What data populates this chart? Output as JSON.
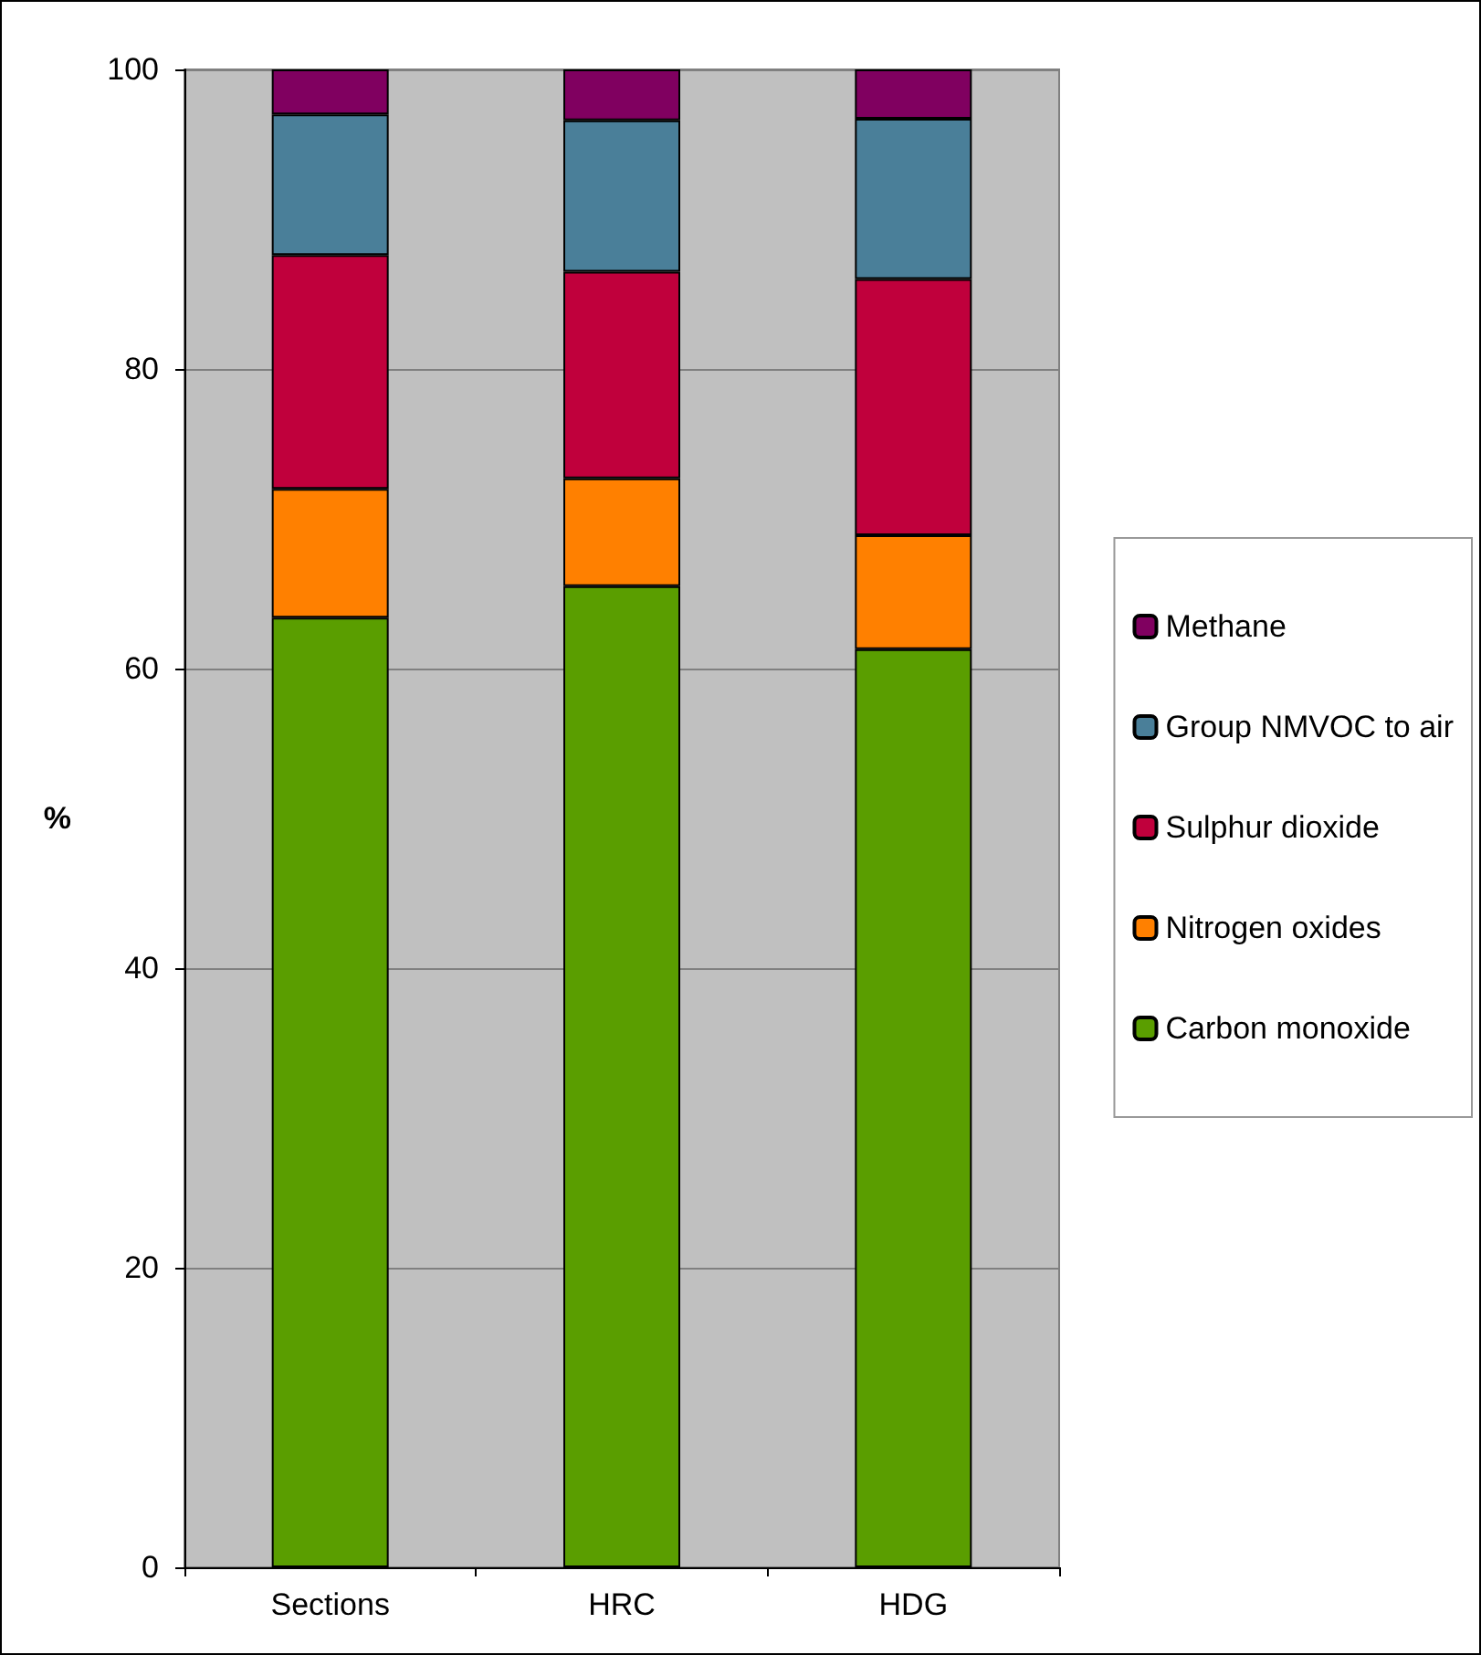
{
  "chart_data": {
    "type": "bar",
    "stacked": true,
    "ylabel": "%",
    "categories": [
      "Sections",
      "HRC",
      "HDG"
    ],
    "series": [
      {
        "name": "Carbon monoxide",
        "color": "#5a9e00",
        "values": [
          63.4,
          65.5,
          61.3
        ]
      },
      {
        "name": "Nitrogen oxides",
        "color": "#ff8000",
        "values": [
          8.6,
          7.2,
          7.6
        ]
      },
      {
        "name": "Sulphur dioxide",
        "color": "#c0003c",
        "values": [
          15.6,
          13.8,
          17.1
        ]
      },
      {
        "name": "Group NMVOC to air",
        "color": "#4a7f99",
        "values": [
          9.4,
          10.1,
          10.7
        ]
      },
      {
        "name": "Methane",
        "color": "#800060",
        "values": [
          3.0,
          3.4,
          3.3
        ]
      }
    ],
    "ylim": [
      0,
      100
    ],
    "yticks": [
      0,
      20,
      40,
      60,
      80,
      100
    ],
    "grid": "y",
    "legend": "right"
  }
}
